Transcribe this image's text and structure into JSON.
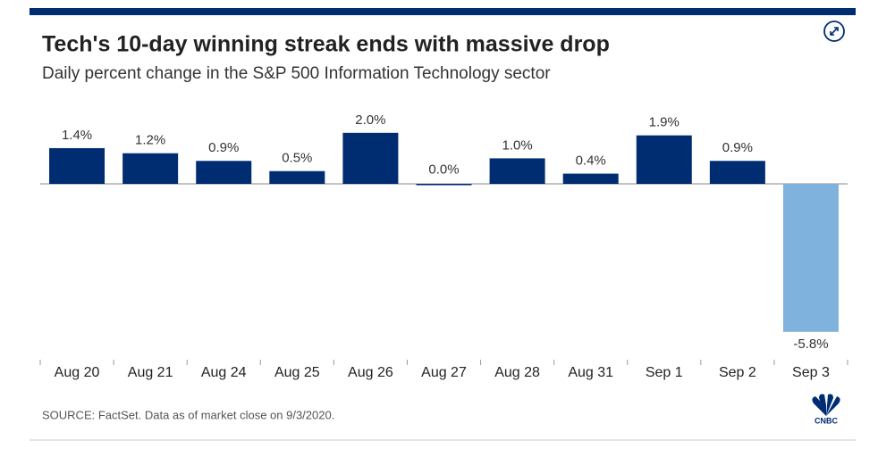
{
  "chart_data": {
    "type": "bar",
    "title": "Tech's 10-day winning streak ends with massive drop",
    "subtitle": "Daily percent change in the S&P 500 Information Technology sector",
    "categories": [
      "Aug 20",
      "Aug 21",
      "Aug 24",
      "Aug 25",
      "Aug 26",
      "Aug 27",
      "Aug 28",
      "Aug 31",
      "Sep 1",
      "Sep 2",
      "Sep 3"
    ],
    "values": [
      1.4,
      1.2,
      0.9,
      0.5,
      2.0,
      0.0,
      1.0,
      0.4,
      1.9,
      0.9,
      -5.8
    ],
    "value_labels": [
      "1.4%",
      "1.2%",
      "0.9%",
      "0.5%",
      "2.0%",
      "0.0%",
      "1.0%",
      "0.4%",
      "1.9%",
      "0.9%",
      "-5.8%"
    ],
    "colors": [
      "#002d72",
      "#002d72",
      "#002d72",
      "#002d72",
      "#002d72",
      "#002d72",
      "#002d72",
      "#002d72",
      "#002d72",
      "#002d72",
      "#7fb2dc"
    ],
    "source": "SOURCE: FactSet. Data as of market close on 9/3/2020.",
    "logo": "CNBC"
  }
}
